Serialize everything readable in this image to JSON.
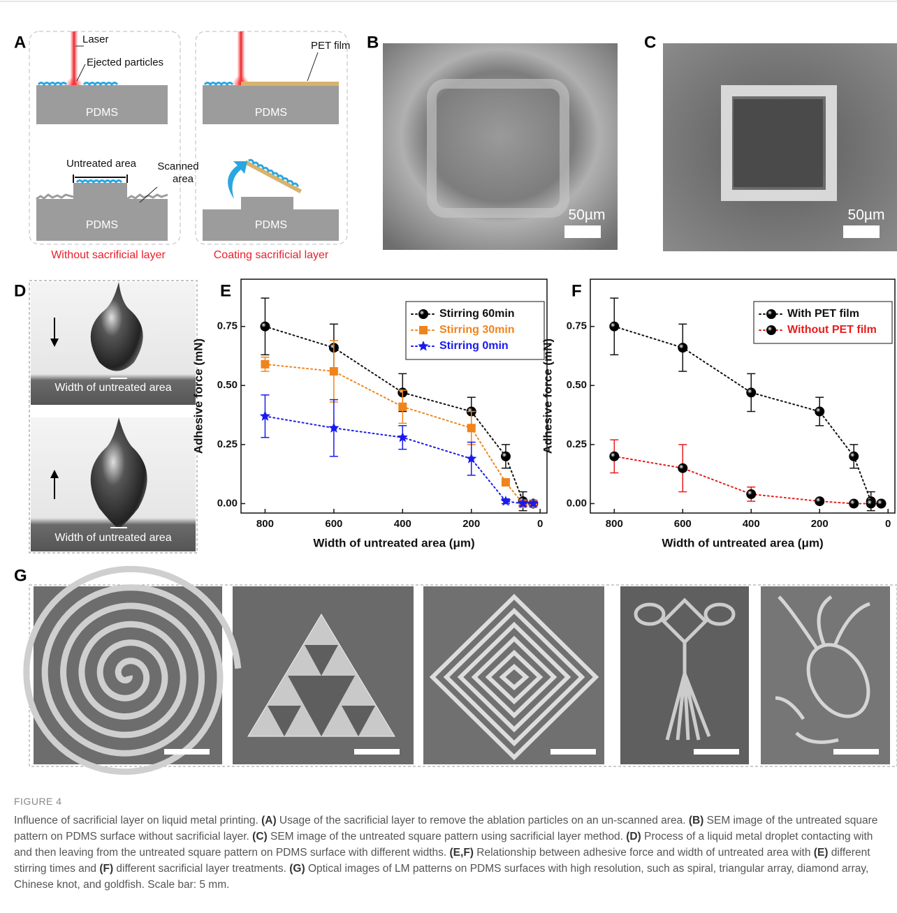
{
  "panels": {
    "labels": [
      "A",
      "B",
      "C",
      "D",
      "E",
      "F",
      "G"
    ],
    "a": {
      "laser": "Laser",
      "ejected": "Ejected particles",
      "pet": "PET film",
      "pdms": [
        "PDMS",
        "PDMS",
        "PDMS",
        "PDMS"
      ],
      "untreated": "Untreated area",
      "scanned": [
        "Scanned",
        "area"
      ],
      "left_caption": "Without sacrificial layer",
      "right_caption": "Coating sacrificial layer"
    },
    "b": {
      "scale": "50µm"
    },
    "c": {
      "scale": "50µm"
    },
    "d": {
      "width_labels": [
        "Width of untreated area",
        "Width of untreated area"
      ]
    }
  },
  "chart_data": [
    {
      "type": "line",
      "xlabel": "Width of untreated area (μm)",
      "ylabel": "Adhesive force (mN)",
      "x": [
        800,
        600,
        400,
        200,
        100,
        50,
        20
      ],
      "xlim": [
        870,
        -20
      ],
      "xticks": [
        800,
        600,
        400,
        200,
        0
      ],
      "ylim": [
        -0.04,
        0.95
      ],
      "yticks": [
        {
          "value": 0,
          "label": "0.00"
        },
        {
          "value": 0.25,
          "label": "0.25"
        },
        {
          "value": 0.5,
          "label": "0.50"
        },
        {
          "value": 0.75,
          "label": "0.75"
        }
      ],
      "legend": "upper right",
      "line_style": "dotted",
      "series": [
        {
          "name": "Stirring 60min",
          "color": "#111111",
          "marker": "circle",
          "values": [
            0.75,
            0.66,
            0.47,
            0.39,
            0.2,
            0.01,
            0.0
          ],
          "errors": [
            0.12,
            0.1,
            0.08,
            0.06,
            0.05,
            0.04,
            0.01
          ]
        },
        {
          "name": "Stirring 30min",
          "color": "#f0841c",
          "marker": "square",
          "values": [
            0.59,
            0.56,
            0.41,
            0.32,
            0.09,
            0.0,
            0.0
          ],
          "errors": [
            0.03,
            0.13,
            0.07,
            0.07,
            0.01,
            0.01,
            0.01
          ]
        },
        {
          "name": "Stirring 0min",
          "color": "#1a1aee",
          "marker": "star",
          "values": [
            0.37,
            0.32,
            0.28,
            0.19,
            0.01,
            0.0,
            0.0
          ],
          "errors": [
            0.09,
            0.12,
            0.05,
            0.07,
            0.01,
            0.01,
            0.01
          ]
        }
      ]
    },
    {
      "type": "line",
      "xlabel": "Width of untreated area (μm)",
      "ylabel": "Adhesive force (mN)",
      "x": [
        800,
        600,
        400,
        200,
        100,
        50,
        20
      ],
      "xlim": [
        870,
        -20
      ],
      "xticks": [
        800,
        600,
        400,
        200,
        0
      ],
      "ylim": [
        -0.04,
        0.95
      ],
      "yticks": [
        {
          "value": 0,
          "label": "0.00"
        },
        {
          "value": 0.25,
          "label": "0.25"
        },
        {
          "value": 0.5,
          "label": "0.50"
        },
        {
          "value": 0.75,
          "label": "0.75"
        }
      ],
      "legend": "upper right",
      "line_style": "dotted",
      "series": [
        {
          "name": "With PET film",
          "color": "#111111",
          "marker": "circle",
          "values": [
            0.75,
            0.66,
            0.47,
            0.39,
            0.2,
            0.01,
            0.0
          ],
          "errors": [
            0.12,
            0.1,
            0.08,
            0.06,
            0.05,
            0.04,
            0.01
          ]
        },
        {
          "name": "Without PET film",
          "color": "#e81c1c",
          "marker": "circle",
          "values": [
            0.2,
            0.15,
            0.04,
            0.01,
            0.0,
            0.0,
            0.0
          ],
          "errors": [
            0.07,
            0.1,
            0.03,
            0.01,
            0.005,
            0.005,
            0.005
          ]
        }
      ]
    }
  ],
  "caption": {
    "title": "FIGURE 4",
    "segments": [
      {
        "text": "Influence of sacrificial layer on liquid metal printing. ",
        "bold": false
      },
      {
        "text": "(A)",
        "bold": true
      },
      {
        "text": " Usage of the sacrificial layer to remove the ablation particles on an un-scanned area. ",
        "bold": false
      },
      {
        "text": "(B)",
        "bold": true
      },
      {
        "text": " SEM image of the untreated square pattern on PDMS surface without sacrificial layer. ",
        "bold": false
      },
      {
        "text": "(C)",
        "bold": true
      },
      {
        "text": " SEM image of the untreated square pattern using sacrificial layer method. ",
        "bold": false
      },
      {
        "text": "(D)",
        "bold": true
      },
      {
        "text": " Process of a liquid metal droplet contacting with and then leaving from the untreated square pattern on PDMS surface with different widths. ",
        "bold": false
      },
      {
        "text": "(E,F)",
        "bold": true
      },
      {
        "text": " Relationship between adhesive force and width of untreated area with ",
        "bold": false
      },
      {
        "text": "(E)",
        "bold": true
      },
      {
        "text": " different stirring times and ",
        "bold": false
      },
      {
        "text": "(F)",
        "bold": true
      },
      {
        "text": " different sacrificial layer treatments. ",
        "bold": false
      },
      {
        "text": "(G)",
        "bold": true
      },
      {
        "text": " Optical images of LM patterns on PDMS surfaces with high resolution, such as spiral, triangular array, diamond array, Chinese knot, and goldfish. Scale bar: 5 mm.",
        "bold": false
      }
    ]
  }
}
